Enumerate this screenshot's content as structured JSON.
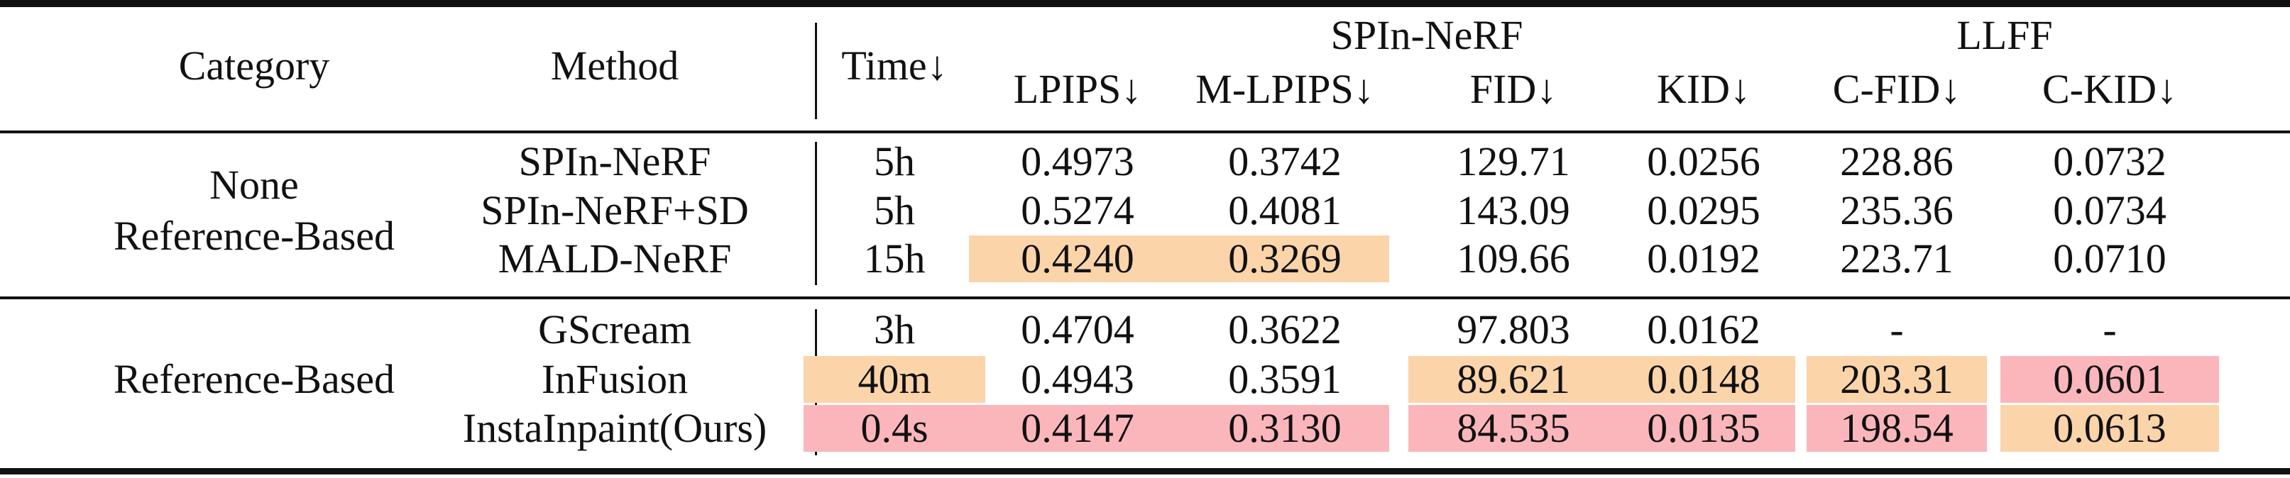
{
  "colors": {
    "best": "#fbb6bc",
    "second": "#fbd4aa"
  },
  "header": {
    "category": "Category",
    "method": "Method",
    "time": "Time↓",
    "spin_group": "SPIn-NeRF",
    "llff_group": "LLFF",
    "metrics": [
      "LPIPS↓",
      "M-LPIPS↓",
      "FID↓",
      "KID↓",
      "C-FID↓",
      "C-KID↓"
    ]
  },
  "groups": [
    {
      "category": "None\nReference-Based",
      "rows": [
        {
          "method": "SPIn-NeRF",
          "cells": [
            {
              "v": "5h",
              "h": ""
            },
            {
              "v": "0.4973",
              "h": ""
            },
            {
              "v": "0.3742",
              "h": ""
            },
            {
              "v": "129.71",
              "h": ""
            },
            {
              "v": "0.0256",
              "h": ""
            },
            {
              "v": "228.86",
              "h": ""
            },
            {
              "v": "0.0732",
              "h": ""
            }
          ]
        },
        {
          "method": "SPIn-NeRF+SD",
          "cells": [
            {
              "v": "5h",
              "h": ""
            },
            {
              "v": "0.5274",
              "h": ""
            },
            {
              "v": "0.4081",
              "h": ""
            },
            {
              "v": "143.09",
              "h": ""
            },
            {
              "v": "0.0295",
              "h": ""
            },
            {
              "v": "235.36",
              "h": ""
            },
            {
              "v": "0.0734",
              "h": ""
            }
          ]
        },
        {
          "method": "MALD-NeRF",
          "cells": [
            {
              "v": "15h",
              "h": ""
            },
            {
              "v": "0.4240",
              "h": "second"
            },
            {
              "v": "0.3269",
              "h": "second"
            },
            {
              "v": "109.66",
              "h": ""
            },
            {
              "v": "0.0192",
              "h": ""
            },
            {
              "v": "223.71",
              "h": ""
            },
            {
              "v": "0.0710",
              "h": ""
            }
          ]
        }
      ]
    },
    {
      "category": "Reference-Based",
      "rows": [
        {
          "method": "GScream",
          "cells": [
            {
              "v": "3h",
              "h": ""
            },
            {
              "v": "0.4704",
              "h": ""
            },
            {
              "v": "0.3622",
              "h": ""
            },
            {
              "v": "97.803",
              "h": ""
            },
            {
              "v": "0.0162",
              "h": ""
            },
            {
              "v": "-",
              "h": ""
            },
            {
              "v": "-",
              "h": ""
            }
          ]
        },
        {
          "method": "InFusion",
          "cells": [
            {
              "v": "40m",
              "h": "second"
            },
            {
              "v": "0.4943",
              "h": ""
            },
            {
              "v": "0.3591",
              "h": ""
            },
            {
              "v": "89.621",
              "h": "second"
            },
            {
              "v": "0.0148",
              "h": "second"
            },
            {
              "v": "203.31",
              "h": "second"
            },
            {
              "v": "0.0601",
              "h": "best"
            }
          ]
        },
        {
          "method": "InstaInpaint(Ours)",
          "cells": [
            {
              "v": "0.4s",
              "h": "best"
            },
            {
              "v": "0.4147",
              "h": "best"
            },
            {
              "v": "0.3130",
              "h": "best"
            },
            {
              "v": "84.535",
              "h": "best"
            },
            {
              "v": "0.0135",
              "h": "best"
            },
            {
              "v": "198.54",
              "h": "best"
            },
            {
              "v": "0.0613",
              "h": "second"
            }
          ]
        }
      ]
    }
  ]
}
